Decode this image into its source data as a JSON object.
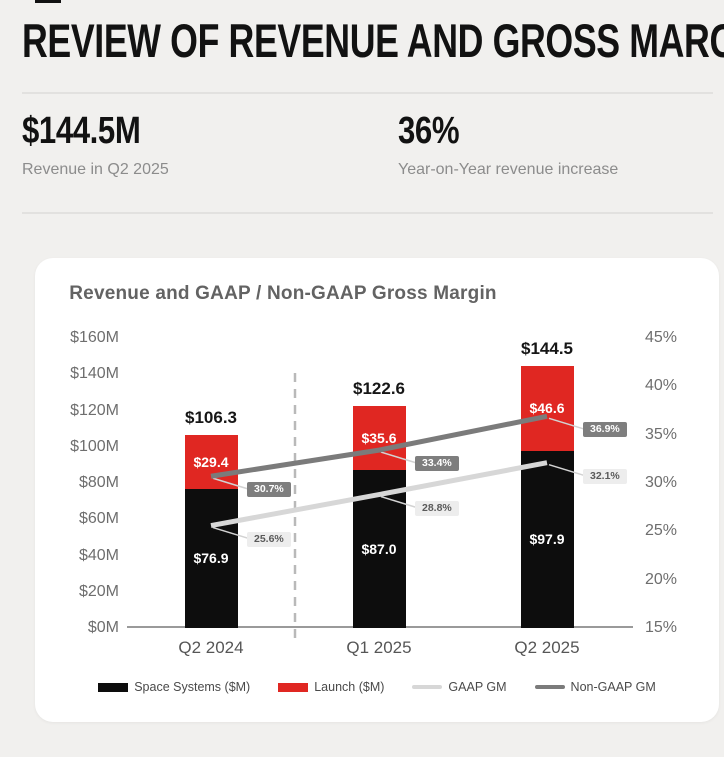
{
  "header": {
    "title": "REVIEW OF REVENUE AND GROSS MARGINS"
  },
  "stats": [
    {
      "value": "$144.5M",
      "label": "Revenue in Q2 2025"
    },
    {
      "value": "36%",
      "label": "Year-on-Year revenue increase"
    }
  ],
  "chart_data": {
    "type": "bar",
    "subtype": "stacked-bar-with-lines",
    "title": "Revenue and GAAP / Non-GAAP Gross Margin",
    "categories": [
      "Q2 2024",
      "Q1 2025",
      "Q2 2025"
    ],
    "series": [
      {
        "name": "Space Systems ($M)",
        "type": "bar",
        "axis": "left",
        "color": "#0d0d0d",
        "values": [
          76.9,
          87.0,
          97.9
        ],
        "labels": [
          "$76.9",
          "$87.0",
          "$97.9"
        ]
      },
      {
        "name": "Launch ($M)",
        "type": "bar",
        "axis": "left",
        "color": "#e02722",
        "values": [
          29.4,
          35.6,
          46.6
        ],
        "labels": [
          "$29.4",
          "$35.6",
          "$46.6"
        ]
      },
      {
        "name": "GAAP GM",
        "type": "line",
        "axis": "right",
        "color": "#d7d7d7",
        "badge": "light",
        "values": [
          25.6,
          28.8,
          32.1
        ],
        "labels": [
          "25.6%",
          "28.8%",
          "32.1%"
        ]
      },
      {
        "name": "Non-GAAP GM",
        "type": "line",
        "axis": "right",
        "color": "#7b7b7b",
        "badge": "dark",
        "values": [
          30.7,
          33.4,
          36.9
        ],
        "labels": [
          "30.7%",
          "33.4%",
          "36.9%"
        ]
      }
    ],
    "totals": [
      "$106.3",
      "$122.6",
      "$144.5"
    ],
    "left_axis": {
      "min": 0,
      "max": 160,
      "ticks": [
        {
          "label": "$160M",
          "value": 160
        },
        {
          "label": "$140M",
          "value": 140
        },
        {
          "label": "$120M",
          "value": 120
        },
        {
          "label": "$100M",
          "value": 100
        },
        {
          "label": "$80M",
          "value": 80
        },
        {
          "label": "$60M",
          "value": 60
        },
        {
          "label": "$40M",
          "value": 40
        },
        {
          "label": "$20M",
          "value": 20
        },
        {
          "label": "$0M",
          "value": 0
        }
      ]
    },
    "right_axis": {
      "min": 15,
      "max": 45,
      "ticks": [
        {
          "label": "45%",
          "value": 45
        },
        {
          "label": "40%",
          "value": 40
        },
        {
          "label": "35%",
          "value": 35
        },
        {
          "label": "30%",
          "value": 30
        },
        {
          "label": "25%",
          "value": 25
        },
        {
          "label": "20%",
          "value": 20
        },
        {
          "label": "15%",
          "value": 15
        }
      ]
    },
    "separator": {
      "after_category_index": 0,
      "style": "dashed",
      "color": "#b9b9b9"
    },
    "legend_position": "bottom",
    "grid": false
  }
}
